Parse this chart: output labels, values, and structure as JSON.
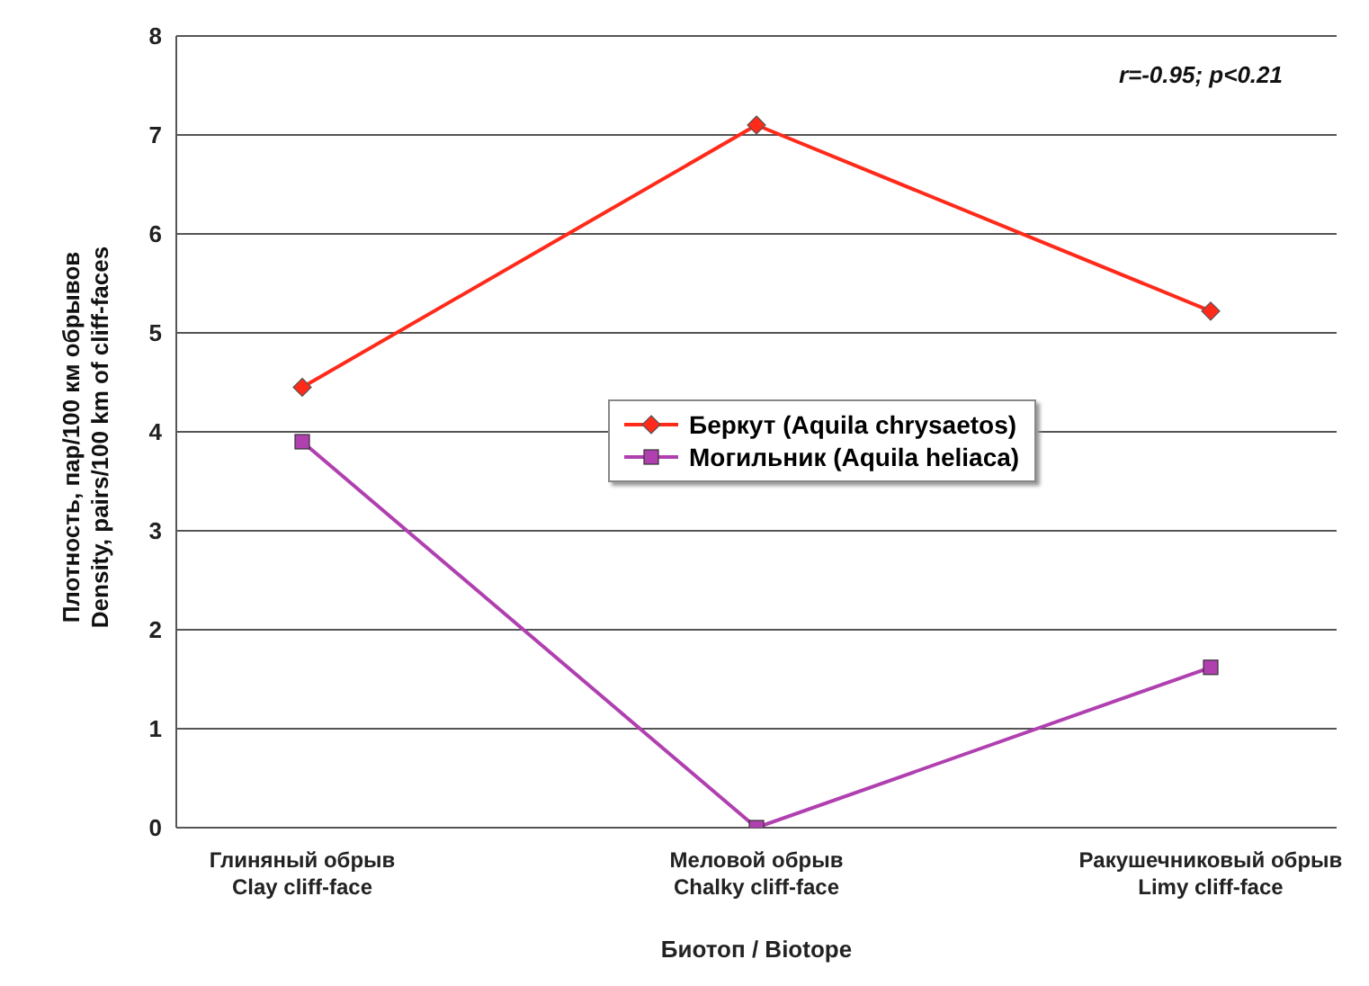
{
  "chart_data": {
    "type": "line",
    "xlabel": "Биотоп / Biotope",
    "ylabel": "Плотность, пар/100 км обрывов\nDensity, pairs/100 km of cliff-faces",
    "categories": [
      "Глиняный обрыв\nClay cliff-face",
      "Меловой обрыв\nChalky cliff-face",
      "Ракушечниковый обрыв\nLimy cliff-face"
    ],
    "series": [
      {
        "name": "Беркут (Aquila chrysaetos)",
        "color": "#ff2a1a",
        "marker": "diamond",
        "values": [
          4.45,
          7.1,
          5.22
        ]
      },
      {
        "name": "Могильник (Aquila heliaca)",
        "color": "#b040b0",
        "marker": "square",
        "values": [
          3.9,
          0.0,
          1.62
        ]
      }
    ],
    "ylim": [
      0,
      8
    ],
    "yticks": [
      0,
      1,
      2,
      3,
      4,
      5,
      6,
      7,
      8
    ],
    "grid": "y",
    "legend": "center",
    "line_style": "solid",
    "annotations": [
      "r=-0.95; p<0.21"
    ]
  }
}
